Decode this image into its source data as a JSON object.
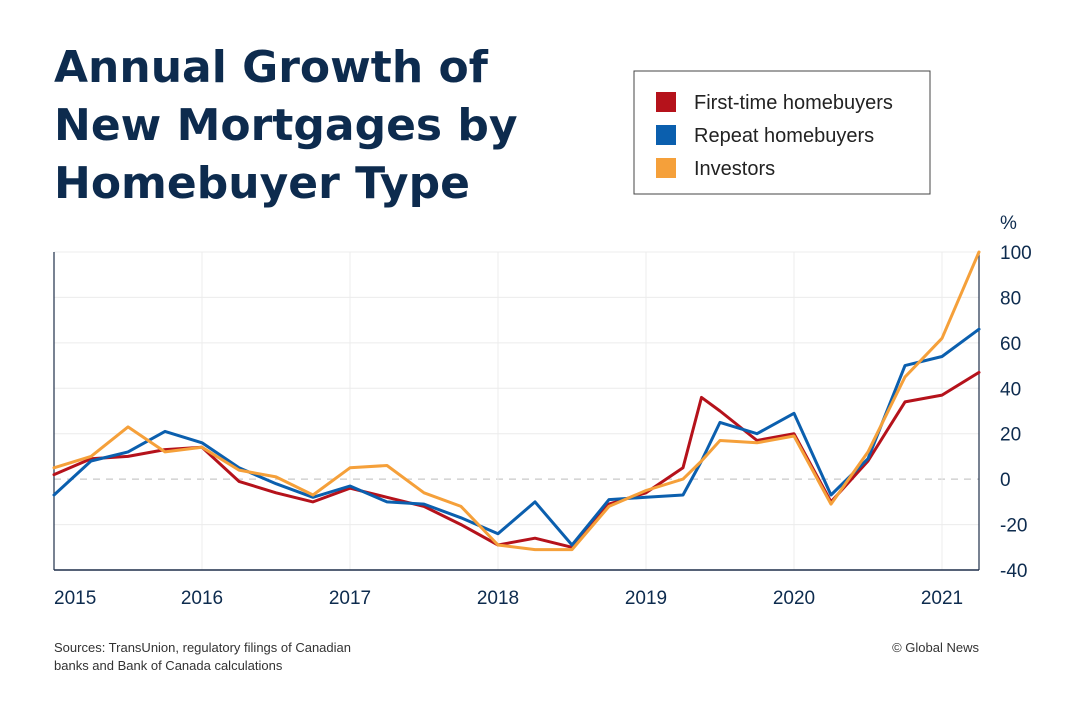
{
  "chart_data": {
    "type": "line",
    "title": [
      "Annual Growth of",
      "New Mortgages by",
      "Homebuyer Type"
    ],
    "ylabel": "%",
    "ylim": [
      -40,
      100
    ],
    "yticks": [
      100,
      80,
      60,
      40,
      20,
      0,
      -20,
      -40
    ],
    "xlim": [
      2015.0,
      2021.25
    ],
    "xticks": [
      2015,
      2016,
      2017,
      2018,
      2019,
      2020,
      2021
    ],
    "x": [
      2015.0,
      2015.25,
      2015.5,
      2015.75,
      2016.0,
      2016.25,
      2016.5,
      2016.75,
      2017.0,
      2017.25,
      2017.5,
      2017.75,
      2018.0,
      2018.25,
      2018.5,
      2018.75,
      2019.0,
      2019.25,
      2019.375,
      2019.5,
      2019.75,
      2020.0,
      2020.25,
      2020.5,
      2020.75,
      2021.0,
      2021.25
    ],
    "series": [
      {
        "name": "First-time homebuyers",
        "color": "#b5121b",
        "values": [
          2,
          9,
          10,
          13,
          14,
          -1,
          -6,
          -10,
          -4,
          -8,
          -12,
          -20,
          -29,
          -26,
          -30,
          -11,
          -6,
          5,
          36,
          30,
          17,
          20,
          -10,
          8,
          34,
          37,
          47
        ]
      },
      {
        "name": "Repeat homebuyers",
        "color": "#0b5fae",
        "values": [
          -7,
          8,
          12,
          21,
          16,
          5,
          -2,
          -8,
          -3,
          -10,
          -11,
          -17,
          -24,
          -10,
          -29,
          -9,
          -8,
          -7,
          8,
          25,
          20,
          29,
          -7,
          9,
          50,
          54,
          66
        ]
      },
      {
        "name": "Investors",
        "color": "#f5a03a",
        "values": [
          5,
          10,
          23,
          12,
          14,
          4,
          1,
          -7,
          5,
          6,
          -6,
          -12,
          -29,
          -31,
          -31,
          -12,
          -5,
          0,
          8,
          17,
          16,
          19,
          -11,
          12,
          45,
          62,
          100
        ]
      }
    ],
    "legend_position": "top-right",
    "zero_line": "dashed",
    "grid": true
  },
  "footer": {
    "sources_line1": "Sources: TransUnion, regulatory filings of Canadian",
    "sources_line2": "banks and Bank of Canada calculations",
    "credit": "© Global News"
  }
}
